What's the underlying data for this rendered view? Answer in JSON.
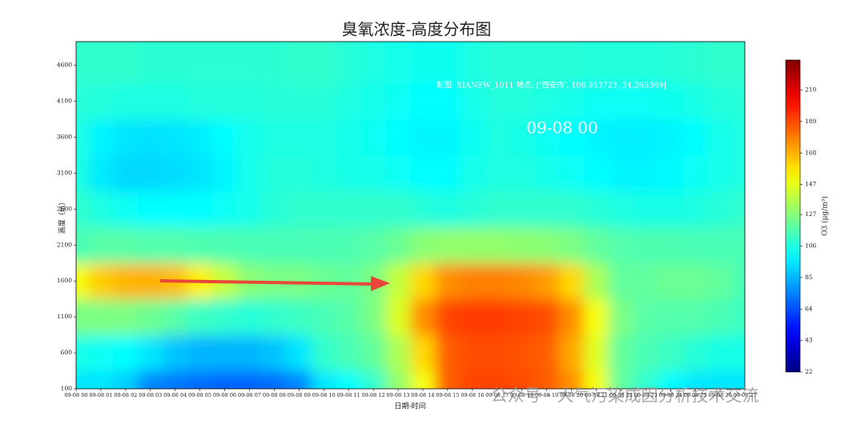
{
  "chart_data": {
    "type": "heatmap",
    "title": "臭氧浓度-高度分布图",
    "xlabel": "日期-时间",
    "ylabel": "高度（m）",
    "colorbar_label": "O3 (μg/m³)",
    "annotations": [
      "制图: XIANEW_1011 地点: ['西安市', 108.953723, 34.265369]",
      "09-08 00",
      "公众号 · 大气污染成因分析技术交流"
    ],
    "colormap": "jet",
    "categories": [
      "09-08 00",
      "09-08 01",
      "09-08 02",
      "09-08 03",
      "09-08 04",
      "09-08 05",
      "09-08 06",
      "09-08 07",
      "09-08 08",
      "09-08 09",
      "09-08 10",
      "09-08 11",
      "09-08 12",
      "09-08 13",
      "09-08 14",
      "09-08 15",
      "09-08 16",
      "09-08 17",
      "09-08 18",
      "09-08 19",
      "09-08 20",
      "09-08 21",
      "09-08 22",
      "09-08 23",
      "09-08 24",
      "09-08 25",
      "09-08 26",
      "09-08 27"
    ],
    "ylim": [
      100,
      4930
    ],
    "yticks": [
      100,
      600,
      1100,
      1600,
      2100,
      2600,
      3100,
      3600,
      4100,
      4600
    ],
    "clim": [
      22,
      230
    ],
    "cticks": [
      22,
      43,
      64,
      85,
      106,
      127,
      147,
      168,
      189,
      210
    ],
    "z": [
      [
        95,
        95,
        90,
        75,
        72,
        70,
        68,
        68,
        70,
        75,
        95,
        100,
        110,
        130,
        150,
        185,
        190,
        190,
        188,
        185,
        175,
        150,
        120,
        110,
        100,
        95,
        95,
        95
      ],
      [
        105,
        102,
        100,
        95,
        88,
        85,
        85,
        85,
        88,
        95,
        110,
        115,
        120,
        135,
        160,
        185,
        188,
        188,
        187,
        185,
        170,
        145,
        120,
        115,
        112,
        108,
        105,
        105
      ],
      [
        125,
        125,
        125,
        122,
        118,
        112,
        110,
        108,
        110,
        112,
        115,
        118,
        125,
        145,
        175,
        190,
        192,
        192,
        190,
        188,
        175,
        150,
        125,
        118,
        117,
        117,
        115,
        112
      ],
      [
        150,
        162,
        167,
        168,
        165,
        155,
        140,
        128,
        125,
        125,
        122,
        120,
        125,
        140,
        160,
        175,
        178,
        178,
        176,
        172,
        160,
        135,
        120,
        120,
        122,
        122,
        120,
        115
      ],
      [
        115,
        118,
        118,
        117,
        117,
        116,
        116,
        115,
        115,
        115,
        115,
        116,
        118,
        122,
        128,
        130,
        130,
        130,
        129,
        128,
        125,
        120,
        117,
        116,
        116,
        115,
        115,
        115
      ],
      [
        110,
        106,
        102,
        100,
        100,
        100,
        102,
        104,
        108,
        110,
        110,
        110,
        110,
        110,
        108,
        106,
        108,
        110,
        110,
        110,
        110,
        108,
        106,
        105,
        105,
        106,
        108,
        110
      ],
      [
        106,
        96,
        92,
        92,
        93,
        95,
        98,
        104,
        107,
        107,
        106,
        105,
        104,
        102,
        100,
        100,
        104,
        106,
        106,
        104,
        102,
        100,
        98,
        98,
        99,
        102,
        104,
        106
      ],
      [
        106,
        98,
        95,
        94,
        95,
        97,
        100,
        104,
        106,
        106,
        106,
        104,
        102,
        100,
        98,
        98,
        102,
        106,
        105,
        102,
        100,
        98,
        97,
        97,
        98,
        100,
        104,
        106
      ],
      [
        108,
        107,
        106,
        106,
        106,
        107,
        107,
        107,
        108,
        108,
        108,
        106,
        104,
        102,
        100,
        100,
        104,
        107,
        107,
        106,
        104,
        102,
        102,
        102,
        103,
        105,
        107,
        108
      ],
      [
        110,
        110,
        110,
        109,
        109,
        109,
        109,
        109,
        109,
        110,
        110,
        108,
        106,
        104,
        103,
        103,
        106,
        108,
        108,
        108,
        108,
        107,
        107,
        107,
        108,
        109,
        110,
        110
      ]
    ]
  }
}
